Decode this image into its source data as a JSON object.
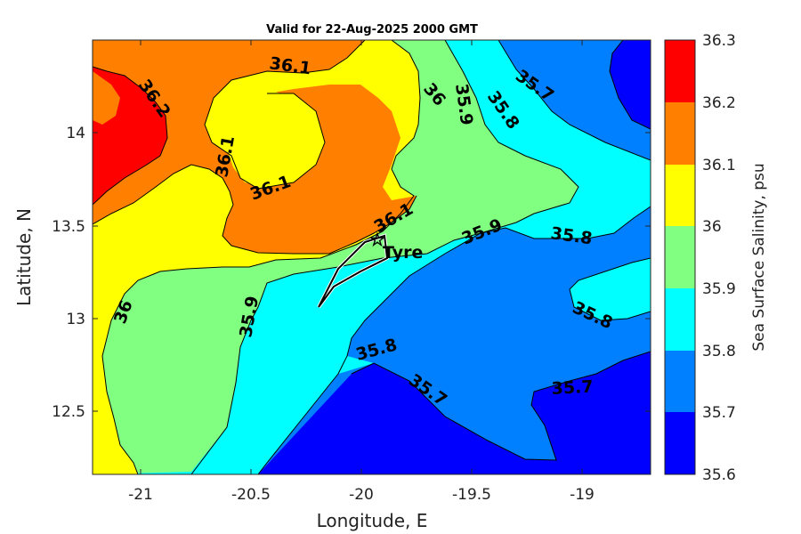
{
  "title": "Valid for 22-Aug-2025 2000 GMT",
  "x_axis": {
    "label": "Longitude, E",
    "ticks": [
      "-21",
      "-20.5",
      "-20",
      "-19.5",
      "-19"
    ]
  },
  "y_axis": {
    "label": "Latitude, N",
    "ticks": [
      "14",
      "13.5",
      "13",
      "12.5"
    ]
  },
  "colorbar": {
    "label": "Sea Surface Salinity, psu",
    "levels": [
      "36.3",
      "36.2",
      "36.1",
      "36",
      "35.9",
      "35.8",
      "35.7",
      "35.6"
    ],
    "colors": [
      "#ff0000",
      "#ff8000",
      "#ffff00",
      "#80ff80",
      "#00ffff",
      "#0080ff",
      "#0000ff"
    ]
  },
  "contour_labels": [
    "36.1",
    "36.2",
    "36.1",
    "36.1",
    "36.1",
    "36",
    "35.9",
    "35.8",
    "35.7",
    "36",
    "35.9",
    "35.8",
    "35.8",
    "35.9",
    "35.8",
    "35.7",
    "35.7"
  ],
  "vessel": {
    "name": "Tyre"
  }
}
